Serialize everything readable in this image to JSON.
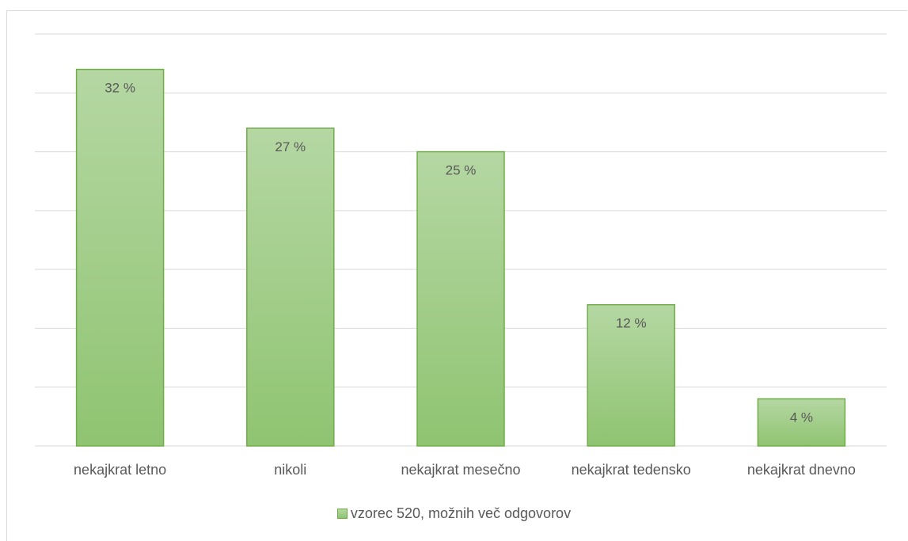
{
  "chart_data": {
    "type": "bar",
    "categories": [
      "nekajkrat letno",
      "nikoli",
      "nekajkrat mesečno",
      "nekajkrat tedensko",
      "nekajkrat dnevno"
    ],
    "series": [
      {
        "name": "vzorec 520, možnih več odgovorov",
        "values": [
          32,
          27,
          25,
          12,
          4
        ]
      }
    ],
    "data_labels": [
      "32 %",
      "27 %",
      "25 %",
      "12 %",
      "4 %"
    ],
    "ylim": [
      0,
      35
    ],
    "gridlines": true,
    "y_tick_labels_visible": false,
    "legend_position": "bottom",
    "bar_fill_top": "#b5d7a3",
    "bar_fill_bottom": "#8fc471",
    "bar_border": "#70ad47"
  },
  "legend": {
    "label": "vzorec 520, možnih več odgovorov"
  }
}
